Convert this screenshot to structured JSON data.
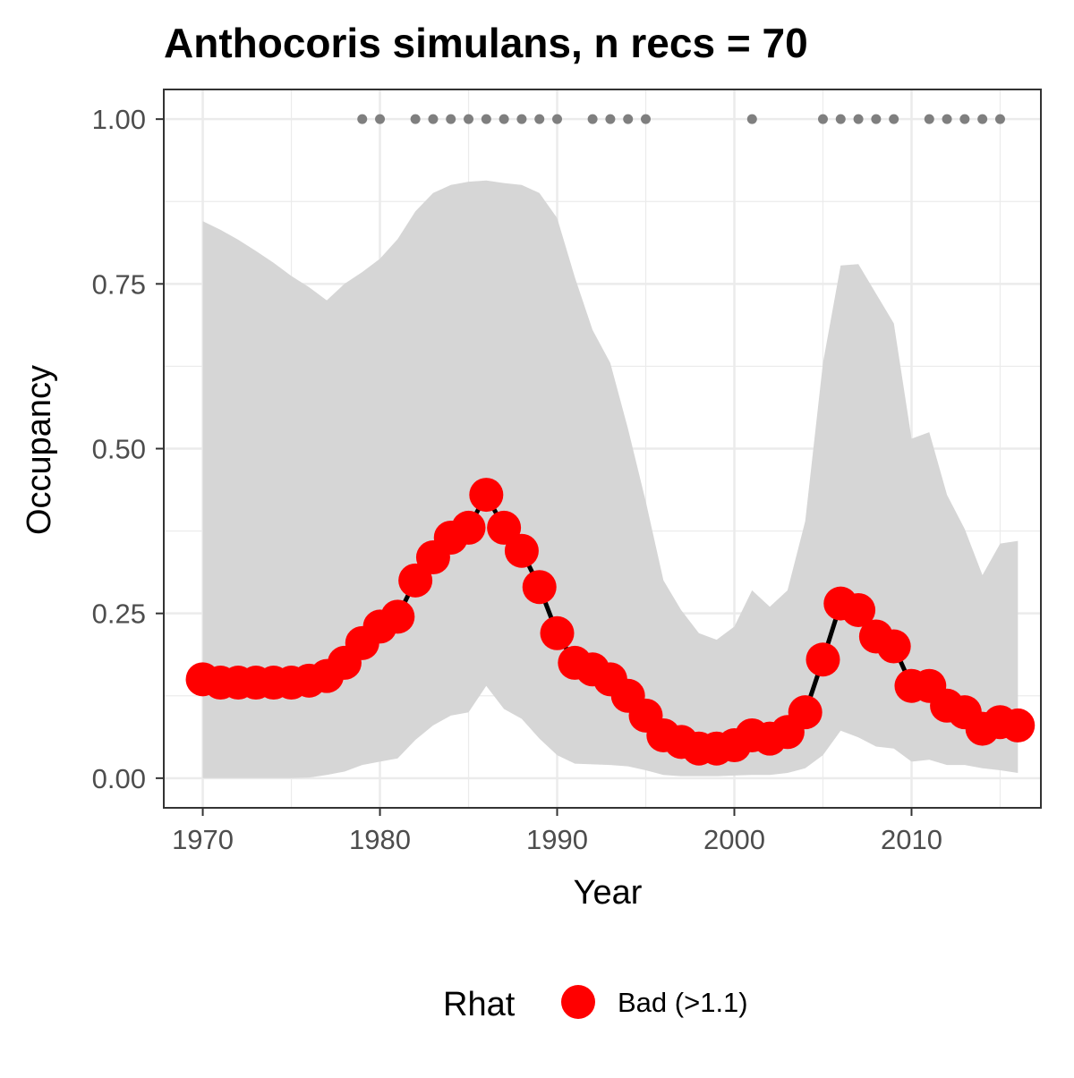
{
  "chart_data": {
    "type": "line",
    "title": "Anthocoris simulans, n recs = 70",
    "xlabel": "Year",
    "ylabel": "Occupancy",
    "xlim": [
      1967.8,
      2017.3
    ],
    "ylim": [
      -0.045,
      1.045
    ],
    "x_ticks": [
      1970,
      1980,
      1990,
      2000,
      2010
    ],
    "x_tick_labels": [
      "1970",
      "1980",
      "1990",
      "2000",
      "2010"
    ],
    "y_ticks": [
      0,
      0.25,
      0.5,
      0.75,
      1.0
    ],
    "y_tick_labels": [
      "0.00",
      "0.25",
      "0.50",
      "0.75",
      "1.00"
    ],
    "grid": true,
    "years": [
      1970,
      1971,
      1972,
      1973,
      1974,
      1975,
      1976,
      1977,
      1978,
      1979,
      1980,
      1981,
      1982,
      1983,
      1984,
      1985,
      1986,
      1987,
      1988,
      1989,
      1990,
      1991,
      1992,
      1993,
      1994,
      1995,
      1996,
      1997,
      1998,
      1999,
      2000,
      2001,
      2002,
      2003,
      2004,
      2005,
      2006,
      2007,
      2008,
      2009,
      2010,
      2011,
      2012,
      2013,
      2014,
      2015,
      2016
    ],
    "series": [
      {
        "type": "line",
        "values": [
          0.15,
          0.145,
          0.145,
          0.145,
          0.145,
          0.145,
          0.148,
          0.155,
          0.175,
          0.205,
          0.23,
          0.245,
          0.3,
          0.335,
          0.365,
          0.38,
          0.43,
          0.38,
          0.345,
          0.29,
          0.22,
          0.175,
          0.165,
          0.15,
          0.125,
          0.095,
          0.065,
          0.055,
          0.045,
          0.045,
          0.05,
          0.065,
          0.06,
          0.07,
          0.1,
          0.18,
          0.265,
          0.255,
          0.215,
          0.2,
          0.14,
          0.14,
          0.11,
          0.1,
          0.075,
          0.085,
          0.08
        ]
      },
      {
        "type": "band",
        "lower": [
          0.0,
          0.0,
          0.0,
          0.0,
          0.0,
          0.0,
          0.001,
          0.005,
          0.01,
          0.02,
          0.025,
          0.03,
          0.058,
          0.08,
          0.095,
          0.1,
          0.14,
          0.105,
          0.09,
          0.06,
          0.035,
          0.022,
          0.021,
          0.02,
          0.018,
          0.012,
          0.005,
          0.003,
          0.003,
          0.003,
          0.004,
          0.005,
          0.005,
          0.008,
          0.015,
          0.035,
          0.072,
          0.062,
          0.048,
          0.045,
          0.025,
          0.028,
          0.02,
          0.02,
          0.015,
          0.012,
          0.008
        ],
        "upper": [
          0.845,
          0.832,
          0.817,
          0.8,
          0.782,
          0.762,
          0.745,
          0.725,
          0.75,
          0.768,
          0.788,
          0.818,
          0.86,
          0.888,
          0.9,
          0.905,
          0.907,
          0.903,
          0.9,
          0.888,
          0.85,
          0.76,
          0.68,
          0.63,
          0.53,
          0.42,
          0.3,
          0.255,
          0.22,
          0.21,
          0.23,
          0.285,
          0.26,
          0.285,
          0.39,
          0.63,
          0.778,
          0.78,
          0.735,
          0.69,
          0.515,
          0.525,
          0.43,
          0.378,
          0.308,
          0.356,
          0.36
        ]
      }
    ],
    "record_years": [
      1979,
      1980,
      1982,
      1983,
      1984,
      1985,
      1986,
      1987,
      1988,
      1989,
      1990,
      1992,
      1993,
      1994,
      1995,
      2001,
      2005,
      2006,
      2007,
      2008,
      2009,
      2011,
      2012,
      2013,
      2014,
      2015
    ],
    "record_marker_y": 1.0,
    "legend": {
      "position": "bottom",
      "title": "Rhat",
      "entries": [
        {
          "label": "Bad (>1.1)",
          "color": "#ff0000"
        }
      ]
    },
    "colors": {
      "point": "#ff0000",
      "line": "#000000",
      "band": "#d6d6d6",
      "record_marker": "#7f7f7f",
      "grid": "#ebebeb",
      "panel_border": "#333333"
    }
  }
}
